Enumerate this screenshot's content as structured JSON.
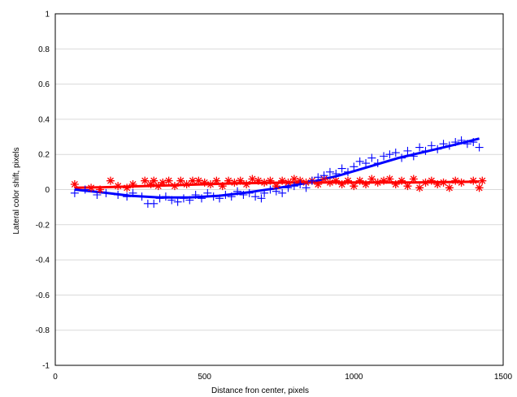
{
  "chart_data": {
    "type": "scatter",
    "title": "",
    "xlabel": "Distance fron center, pixels",
    "ylabel": "Lateral color shift, pixels",
    "xlim": [
      0,
      1500
    ],
    "ylim": [
      -1,
      1
    ],
    "x_ticks": [
      "0",
      "500",
      "1000",
      "1500"
    ],
    "y_ticks": [
      "-1",
      "-0.8",
      "-0.6",
      "-0.4",
      "-0.2",
      "0",
      "0.2",
      "0.4",
      "0.6",
      "0.8",
      "1"
    ],
    "grid": "horizontal",
    "legend": "none",
    "series": [
      {
        "marker": "asterisk",
        "color": "#ff0000",
        "points": [
          [
            65,
            0.03
          ],
          [
            120,
            0.01
          ],
          [
            150,
            0.0
          ],
          [
            185,
            0.05
          ],
          [
            210,
            0.02
          ],
          [
            240,
            0.01
          ],
          [
            260,
            0.03
          ],
          [
            300,
            0.05
          ],
          [
            320,
            0.03
          ],
          [
            330,
            0.05
          ],
          [
            345,
            0.02
          ],
          [
            360,
            0.04
          ],
          [
            380,
            0.05
          ],
          [
            400,
            0.02
          ],
          [
            420,
            0.05
          ],
          [
            440,
            0.03
          ],
          [
            460,
            0.05
          ],
          [
            480,
            0.05
          ],
          [
            500,
            0.04
          ],
          [
            520,
            0.03
          ],
          [
            540,
            0.05
          ],
          [
            560,
            0.02
          ],
          [
            580,
            0.05
          ],
          [
            600,
            0.04
          ],
          [
            620,
            0.05
          ],
          [
            640,
            0.03
          ],
          [
            660,
            0.06
          ],
          [
            680,
            0.05
          ],
          [
            700,
            0.04
          ],
          [
            720,
            0.05
          ],
          [
            740,
            0.02
          ],
          [
            760,
            0.05
          ],
          [
            780,
            0.04
          ],
          [
            800,
            0.06
          ],
          [
            820,
            0.05
          ],
          [
            840,
            0.04
          ],
          [
            860,
            0.05
          ],
          [
            880,
            0.03
          ],
          [
            900,
            0.06
          ],
          [
            920,
            0.04
          ],
          [
            940,
            0.05
          ],
          [
            960,
            0.03
          ],
          [
            980,
            0.05
          ],
          [
            1000,
            0.02
          ],
          [
            1020,
            0.05
          ],
          [
            1040,
            0.03
          ],
          [
            1060,
            0.06
          ],
          [
            1080,
            0.04
          ],
          [
            1100,
            0.05
          ],
          [
            1120,
            0.06
          ],
          [
            1140,
            0.03
          ],
          [
            1160,
            0.05
          ],
          [
            1180,
            0.02
          ],
          [
            1200,
            0.06
          ],
          [
            1220,
            0.01
          ],
          [
            1240,
            0.04
          ],
          [
            1260,
            0.05
          ],
          [
            1280,
            0.03
          ],
          [
            1300,
            0.04
          ],
          [
            1320,
            0.01
          ],
          [
            1340,
            0.05
          ],
          [
            1360,
            0.04
          ],
          [
            1400,
            0.05
          ],
          [
            1420,
            0.01
          ],
          [
            1430,
            0.05
          ]
        ],
        "fit_line": [
          [
            65,
            0.01
          ],
          [
            200,
            0.015
          ],
          [
            400,
            0.025
          ],
          [
            600,
            0.035
          ],
          [
            800,
            0.04
          ],
          [
            1000,
            0.04
          ],
          [
            1200,
            0.04
          ],
          [
            1420,
            0.045
          ]
        ]
      },
      {
        "marker": "plus",
        "color": "#0000ff",
        "points": [
          [
            65,
            -0.02
          ],
          [
            100,
            0.0
          ],
          [
            140,
            -0.03
          ],
          [
            170,
            -0.02
          ],
          [
            210,
            -0.03
          ],
          [
            240,
            -0.04
          ],
          [
            260,
            -0.02
          ],
          [
            290,
            -0.04
          ],
          [
            310,
            -0.08
          ],
          [
            330,
            -0.08
          ],
          [
            350,
            -0.05
          ],
          [
            370,
            -0.04
          ],
          [
            390,
            -0.06
          ],
          [
            410,
            -0.07
          ],
          [
            430,
            -0.05
          ],
          [
            450,
            -0.06
          ],
          [
            470,
            -0.03
          ],
          [
            490,
            -0.05
          ],
          [
            510,
            -0.02
          ],
          [
            530,
            -0.04
          ],
          [
            550,
            -0.05
          ],
          [
            570,
            -0.03
          ],
          [
            590,
            -0.04
          ],
          [
            610,
            -0.01
          ],
          [
            630,
            -0.03
          ],
          [
            650,
            -0.02
          ],
          [
            670,
            -0.04
          ],
          [
            690,
            -0.05
          ],
          [
            700,
            -0.02
          ],
          [
            720,
            0.0
          ],
          [
            740,
            -0.01
          ],
          [
            760,
            -0.02
          ],
          [
            780,
            0.01
          ],
          [
            800,
            0.02
          ],
          [
            820,
            0.03
          ],
          [
            840,
            0.01
          ],
          [
            860,
            0.05
          ],
          [
            880,
            0.07
          ],
          [
            900,
            0.08
          ],
          [
            920,
            0.1
          ],
          [
            940,
            0.09
          ],
          [
            960,
            0.12
          ],
          [
            980,
            0.1
          ],
          [
            1000,
            0.13
          ],
          [
            1020,
            0.16
          ],
          [
            1040,
            0.15
          ],
          [
            1060,
            0.18
          ],
          [
            1080,
            0.15
          ],
          [
            1100,
            0.19
          ],
          [
            1120,
            0.2
          ],
          [
            1140,
            0.21
          ],
          [
            1160,
            0.18
          ],
          [
            1180,
            0.22
          ],
          [
            1200,
            0.19
          ],
          [
            1220,
            0.24
          ],
          [
            1240,
            0.22
          ],
          [
            1260,
            0.25
          ],
          [
            1280,
            0.23
          ],
          [
            1300,
            0.26
          ],
          [
            1320,
            0.25
          ],
          [
            1340,
            0.27
          ],
          [
            1360,
            0.28
          ],
          [
            1380,
            0.26
          ],
          [
            1400,
            0.27
          ],
          [
            1420,
            0.24
          ]
        ],
        "fit_line": [
          [
            65,
            0.0
          ],
          [
            150,
            -0.015
          ],
          [
            250,
            -0.035
          ],
          [
            350,
            -0.045
          ],
          [
            450,
            -0.045
          ],
          [
            550,
            -0.035
          ],
          [
            650,
            -0.015
          ],
          [
            750,
            0.01
          ],
          [
            850,
            0.04
          ],
          [
            950,
            0.08
          ],
          [
            1050,
            0.13
          ],
          [
            1150,
            0.18
          ],
          [
            1250,
            0.22
          ],
          [
            1350,
            0.26
          ],
          [
            1420,
            0.29
          ]
        ]
      }
    ]
  }
}
